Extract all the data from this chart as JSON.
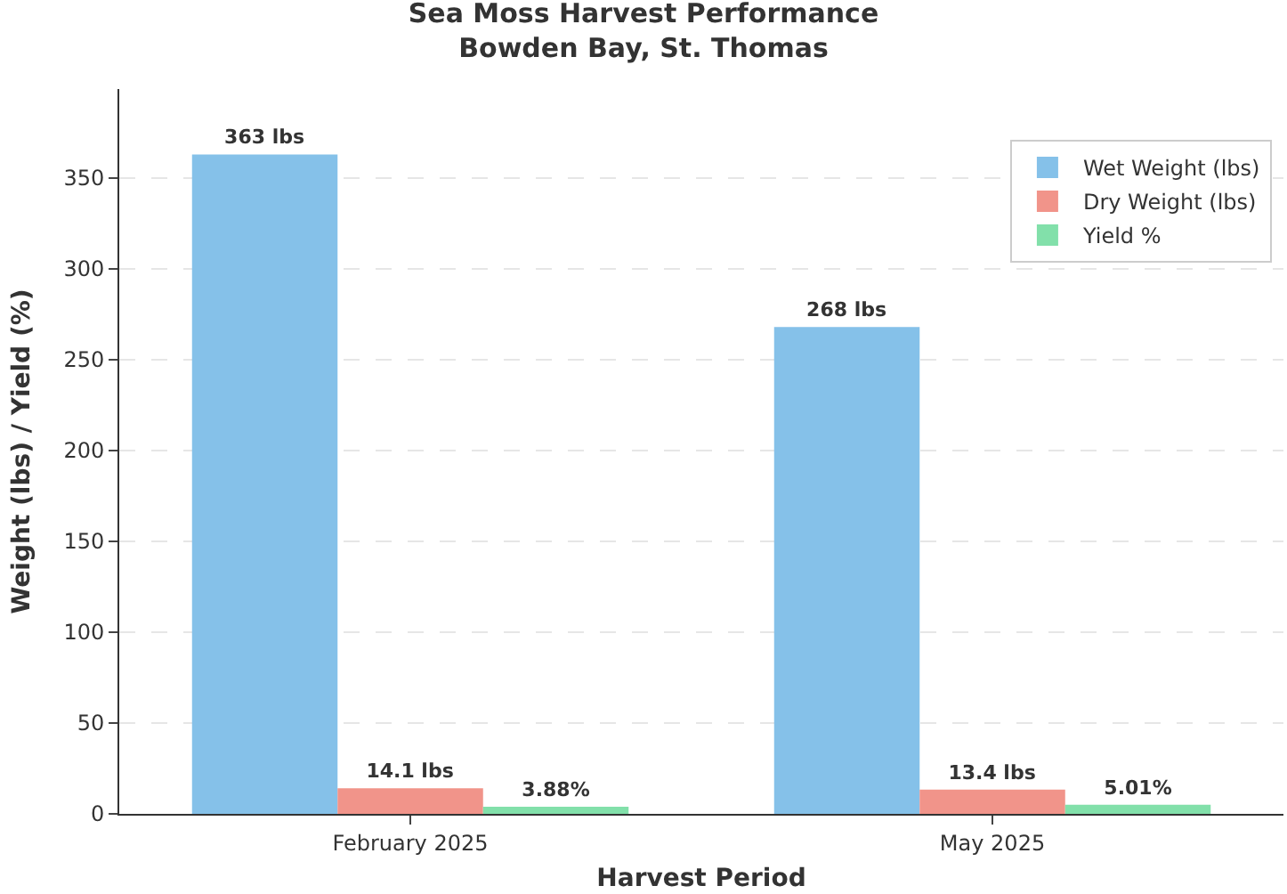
{
  "chart_data": {
    "type": "bar",
    "title": "Sea Moss Harvest Performance\nBowden Bay, St. Thomas",
    "xlabel": "Harvest Period",
    "ylabel": "Weight (lbs) / Yield (%)",
    "categories": [
      "February 2025",
      "May 2025"
    ],
    "series": [
      {
        "name": "Wet Weight (lbs)",
        "color": "#85c1e9",
        "values": [
          363,
          268
        ],
        "value_labels": [
          "363 lbs",
          "268 lbs"
        ]
      },
      {
        "name": "Dry Weight (lbs)",
        "color": "#f1948a",
        "values": [
          14.1,
          13.4
        ],
        "value_labels": [
          "14.1 lbs",
          "13.4 lbs"
        ]
      },
      {
        "name": "Yield %",
        "color": "#82e0aa",
        "values": [
          3.88,
          5.01
        ],
        "value_labels": [
          "3.88%",
          "5.01%"
        ]
      }
    ],
    "ylim": [
      0,
      399
    ],
    "yticks": [
      0,
      50,
      100,
      150,
      200,
      250,
      300,
      350
    ],
    "grid": "y",
    "legend": "top right"
  }
}
